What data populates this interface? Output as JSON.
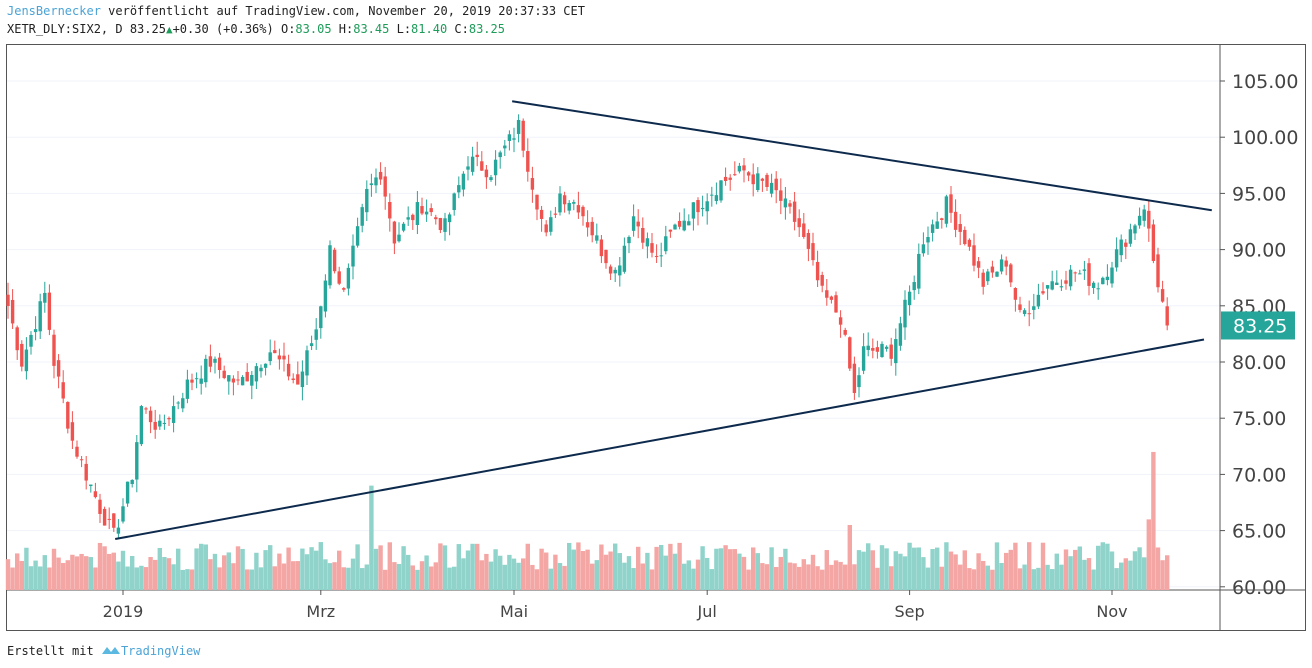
{
  "header": {
    "author": "JensBernecker",
    "published": "veröffentlicht auf TradingView.com, November 20, 2019 20:37:33 CET",
    "symbol": "XETR_DLY:SIX2, D",
    "last": "83.25",
    "change": "+0.30",
    "change_pct": "(+0.36%)",
    "o_label": "O:",
    "o": "83.05",
    "h_label": "H:",
    "h": "83.45",
    "l_label": "L:",
    "l": "81.40",
    "c_label": "C:",
    "c": "83.25"
  },
  "footer": {
    "created_with": "Erstellt mit",
    "brand": "TradingView"
  },
  "colors": {
    "up": "#26a69a",
    "down": "#ef5350",
    "vol_up": "#8fd3cb",
    "vol_down": "#f4a6a4",
    "trendline": "#0d2a4d",
    "badge": "#26a69a"
  },
  "chart_data": {
    "type": "candlestick",
    "symbol": "SIX2",
    "ylim": [
      60,
      107
    ],
    "y_ticks": [
      "105.00",
      "100.00",
      "95.00",
      "90.00",
      "85.00",
      "80.00",
      "75.00",
      "70.00",
      "65.00",
      "60.00"
    ],
    "y_tick_values": [
      105,
      100,
      95,
      90,
      85,
      80,
      75,
      70,
      65,
      60
    ],
    "x_ticks": [
      {
        "label": "2019",
        "day": 25
      },
      {
        "label": "Mrz",
        "day": 68
      },
      {
        "label": "Mai",
        "day": 110
      },
      {
        "label": "Jul",
        "day": 152
      },
      {
        "label": "Sep",
        "day": 196
      },
      {
        "label": "Nov",
        "day": 240
      }
    ],
    "last_price_label": "83.25",
    "last_price": 83.25,
    "total_days": 253,
    "close_waypoints": [
      [
        0,
        85
      ],
      [
        3,
        80
      ],
      [
        8,
        86
      ],
      [
        10,
        80
      ],
      [
        14,
        73
      ],
      [
        20,
        67
      ],
      [
        23,
        64.5
      ],
      [
        27,
        70
      ],
      [
        29,
        76
      ],
      [
        33,
        74
      ],
      [
        39,
        78
      ],
      [
        44,
        80
      ],
      [
        50,
        78
      ],
      [
        57,
        81
      ],
      [
        63,
        78
      ],
      [
        67,
        83
      ],
      [
        70,
        90
      ],
      [
        73,
        86
      ],
      [
        78,
        95
      ],
      [
        81,
        97
      ],
      [
        84,
        91
      ],
      [
        90,
        94
      ],
      [
        95,
        92
      ],
      [
        100,
        98
      ],
      [
        105,
        97
      ],
      [
        108,
        99
      ],
      [
        111,
        101
      ],
      [
        117,
        91
      ],
      [
        120,
        95
      ],
      [
        124,
        94
      ],
      [
        129,
        90
      ],
      [
        132,
        88
      ],
      [
        136,
        93
      ],
      [
        141,
        89
      ],
      [
        145,
        92
      ],
      [
        150,
        94
      ],
      [
        155,
        96
      ],
      [
        160,
        97
      ],
      [
        167,
        95
      ],
      [
        172,
        92
      ],
      [
        177,
        86
      ],
      [
        181,
        84
      ],
      [
        184,
        77
      ],
      [
        186,
        81
      ],
      [
        192,
        81
      ],
      [
        196,
        86
      ],
      [
        199,
        91
      ],
      [
        204,
        94
      ],
      [
        208,
        91
      ],
      [
        212,
        87
      ],
      [
        217,
        89
      ],
      [
        220,
        84
      ],
      [
        226,
        87
      ],
      [
        232,
        88
      ],
      [
        237,
        87
      ],
      [
        243,
        91
      ],
      [
        247,
        94
      ],
      [
        249,
        89
      ],
      [
        252,
        83.25
      ]
    ],
    "volume_spikes": [
      [
        79,
        69
      ],
      [
        183,
        65.5
      ],
      [
        249,
        72
      ],
      [
        248,
        66
      ],
      [
        250,
        63.5
      ]
    ],
    "trendlines": [
      {
        "name": "upper",
        "from": [
          109.6,
          103.2
        ],
        "to": [
          261.7,
          93.5
        ]
      },
      {
        "name": "lower",
        "from": [
          23.3,
          64.25
        ],
        "to": [
          260,
          82.0
        ]
      }
    ]
  }
}
